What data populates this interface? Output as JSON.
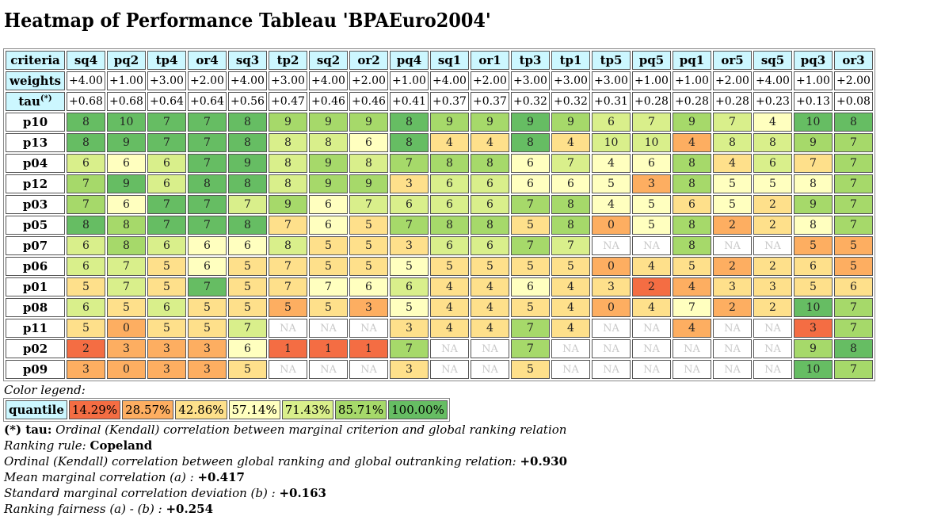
{
  "title": "Heatmap of Performance Tableau 'BPAEuro2004'",
  "header_labels": {
    "criteria": "criteria",
    "weights": "weights",
    "tau": "tau",
    "tau_sup": "(*)"
  },
  "colors": {
    "header_bg": "#ccf7ff",
    "na_text": "#c8c8c8",
    "quantile_classes": [
      "#ffffff",
      "#f46d43",
      "#fdae61",
      "#fee08b",
      "#ffffbf",
      "#d9ef8b",
      "#a6d96a",
      "#66bd63"
    ]
  },
  "criteria": [
    "sq4",
    "pq2",
    "tp4",
    "or4",
    "sq3",
    "tp2",
    "sq2",
    "or2",
    "pq4",
    "sq1",
    "or1",
    "tp3",
    "tp1",
    "tp5",
    "pq5",
    "pq1",
    "or5",
    "sq5",
    "pq3",
    "or3"
  ],
  "weights": [
    "+4.00",
    "+1.00",
    "+3.00",
    "+2.00",
    "+4.00",
    "+3.00",
    "+4.00",
    "+2.00",
    "+1.00",
    "+4.00",
    "+2.00",
    "+3.00",
    "+3.00",
    "+3.00",
    "+1.00",
    "+1.00",
    "+2.00",
    "+4.00",
    "+1.00",
    "+2.00"
  ],
  "tau": [
    "+0.68",
    "+0.68",
    "+0.64",
    "+0.64",
    "+0.56",
    "+0.47",
    "+0.46",
    "+0.46",
    "+0.41",
    "+0.37",
    "+0.37",
    "+0.32",
    "+0.32",
    "+0.31",
    "+0.28",
    "+0.28",
    "+0.28",
    "+0.23",
    "+0.13",
    "+0.08"
  ],
  "rows": [
    {
      "name": "p10",
      "values": [
        "8",
        "10",
        "7",
        "7",
        "8",
        "9",
        "9",
        "9",
        "8",
        "9",
        "9",
        "9",
        "9",
        "6",
        "7",
        "9",
        "7",
        "4",
        "10",
        "8"
      ],
      "classes": [
        7,
        7,
        7,
        7,
        7,
        6,
        6,
        6,
        7,
        6,
        6,
        7,
        6,
        5,
        5,
        6,
        5,
        4,
        7,
        7
      ]
    },
    {
      "name": "p13",
      "values": [
        "8",
        "9",
        "7",
        "7",
        "8",
        "8",
        "8",
        "6",
        "8",
        "4",
        "4",
        "8",
        "4",
        "10",
        "10",
        "4",
        "8",
        "8",
        "9",
        "7"
      ],
      "classes": [
        7,
        7,
        7,
        7,
        7,
        5,
        5,
        4,
        7,
        3,
        3,
        7,
        3,
        5,
        5,
        2,
        5,
        5,
        6,
        6
      ]
    },
    {
      "name": "p04",
      "values": [
        "6",
        "6",
        "6",
        "7",
        "9",
        "8",
        "9",
        "8",
        "7",
        "8",
        "8",
        "6",
        "7",
        "4",
        "6",
        "8",
        "4",
        "6",
        "7",
        "7"
      ],
      "classes": [
        5,
        4,
        5,
        7,
        7,
        5,
        6,
        5,
        6,
        6,
        6,
        4,
        5,
        4,
        4,
        6,
        3,
        5,
        3,
        6
      ]
    },
    {
      "name": "p12",
      "values": [
        "7",
        "9",
        "6",
        "8",
        "8",
        "8",
        "9",
        "9",
        "3",
        "6",
        "6",
        "6",
        "6",
        "5",
        "3",
        "8",
        "5",
        "5",
        "8",
        "7"
      ],
      "classes": [
        6,
        7,
        5,
        7,
        7,
        5,
        6,
        6,
        3,
        5,
        5,
        4,
        4,
        4,
        2,
        6,
        4,
        4,
        4,
        6
      ]
    },
    {
      "name": "p03",
      "values": [
        "7",
        "6",
        "7",
        "7",
        "7",
        "9",
        "6",
        "7",
        "6",
        "6",
        "6",
        "7",
        "8",
        "4",
        "5",
        "6",
        "5",
        "2",
        "9",
        "7"
      ],
      "classes": [
        6,
        4,
        7,
        7,
        5,
        6,
        4,
        5,
        5,
        5,
        5,
        6,
        6,
        4,
        4,
        3,
        4,
        3,
        6,
        6
      ]
    },
    {
      "name": "p05",
      "values": [
        "8",
        "8",
        "7",
        "7",
        "8",
        "7",
        "6",
        "5",
        "7",
        "8",
        "8",
        "5",
        "8",
        "0",
        "5",
        "8",
        "2",
        "2",
        "8",
        "7"
      ],
      "classes": [
        7,
        6,
        7,
        7,
        7,
        3,
        4,
        3,
        6,
        6,
        6,
        3,
        6,
        2,
        4,
        6,
        2,
        3,
        4,
        6
      ]
    },
    {
      "name": "p07",
      "values": [
        "6",
        "8",
        "6",
        "6",
        "6",
        "8",
        "5",
        "5",
        "3",
        "6",
        "6",
        "7",
        "7",
        "NA",
        "NA",
        "8",
        "NA",
        "NA",
        "5",
        "5"
      ],
      "classes": [
        5,
        6,
        5,
        4,
        4,
        5,
        3,
        3,
        3,
        5,
        5,
        6,
        5,
        0,
        0,
        6,
        0,
        0,
        2,
        2
      ]
    },
    {
      "name": "p06",
      "values": [
        "6",
        "7",
        "5",
        "6",
        "5",
        "7",
        "5",
        "5",
        "5",
        "5",
        "5",
        "5",
        "5",
        "0",
        "4",
        "5",
        "2",
        "2",
        "6",
        "5"
      ],
      "classes": [
        5,
        5,
        3,
        4,
        3,
        3,
        3,
        3,
        4,
        3,
        3,
        3,
        3,
        2,
        3,
        3,
        2,
        3,
        3,
        2
      ]
    },
    {
      "name": "p01",
      "values": [
        "5",
        "7",
        "5",
        "7",
        "5",
        "7",
        "7",
        "6",
        "6",
        "4",
        "4",
        "6",
        "4",
        "3",
        "2",
        "4",
        "3",
        "3",
        "5",
        "6"
      ],
      "classes": [
        3,
        5,
        3,
        7,
        3,
        3,
        4,
        4,
        5,
        3,
        3,
        4,
        3,
        3,
        1,
        2,
        3,
        3,
        3,
        3
      ]
    },
    {
      "name": "p08",
      "values": [
        "6",
        "5",
        "6",
        "5",
        "5",
        "5",
        "5",
        "3",
        "5",
        "4",
        "4",
        "5",
        "4",
        "0",
        "4",
        "7",
        "2",
        "2",
        "10",
        "7"
      ],
      "classes": [
        5,
        3,
        5,
        3,
        3,
        2,
        3,
        2,
        4,
        3,
        3,
        3,
        3,
        2,
        3,
        4,
        2,
        3,
        7,
        6
      ]
    },
    {
      "name": "p11",
      "values": [
        "5",
        "0",
        "5",
        "5",
        "7",
        "NA",
        "NA",
        "NA",
        "3",
        "4",
        "4",
        "7",
        "4",
        "NA",
        "NA",
        "4",
        "NA",
        "NA",
        "3",
        "7"
      ],
      "classes": [
        3,
        2,
        3,
        3,
        5,
        0,
        0,
        0,
        3,
        3,
        3,
        6,
        3,
        0,
        0,
        2,
        0,
        0,
        1,
        6
      ]
    },
    {
      "name": "p02",
      "values": [
        "2",
        "3",
        "3",
        "3",
        "6",
        "1",
        "1",
        "1",
        "7",
        "NA",
        "NA",
        "7",
        "NA",
        "NA",
        "NA",
        "NA",
        "NA",
        "NA",
        "9",
        "8"
      ],
      "classes": [
        1,
        2,
        2,
        2,
        4,
        1,
        1,
        1,
        6,
        0,
        0,
        6,
        0,
        0,
        0,
        0,
        0,
        0,
        6,
        7
      ]
    },
    {
      "name": "p09",
      "values": [
        "3",
        "0",
        "3",
        "3",
        "5",
        "NA",
        "NA",
        "NA",
        "3",
        "NA",
        "NA",
        "5",
        "NA",
        "NA",
        "NA",
        "NA",
        "NA",
        "NA",
        "10",
        "7"
      ],
      "classes": [
        2,
        2,
        2,
        2,
        3,
        0,
        0,
        0,
        3,
        0,
        0,
        3,
        0,
        0,
        0,
        0,
        0,
        0,
        7,
        6
      ]
    }
  ],
  "legend": {
    "title": "Color legend:",
    "label": "quantile",
    "items": [
      {
        "text": "14.29%",
        "class": 1
      },
      {
        "text": "28.57%",
        "class": 2
      },
      {
        "text": "42.86%",
        "class": 3
      },
      {
        "text": "57.14%",
        "class": 4
      },
      {
        "text": "71.43%",
        "class": 5
      },
      {
        "text": "85.71%",
        "class": 6
      },
      {
        "text": "100.00%",
        "class": 7
      }
    ]
  },
  "notes": {
    "tau_key": "(*) tau:",
    "tau_text": " Ordinal (Kendall) correlation between marginal criterion and global ranking relation",
    "ranking_rule_label": "Ranking rule: ",
    "ranking_rule_value": "Copeland",
    "global_corr_label": "Ordinal (Kendall) correlation between global ranking and global outranking relation: ",
    "global_corr_value": "+0.930",
    "mean_corr_label": "Mean marginal correlation (a) : ",
    "mean_corr_value": "+0.417",
    "std_corr_label": "Standard marginal correlation deviation (b) : ",
    "std_corr_value": "+0.163",
    "fairness_label": "Ranking fairness (a) - (b) : ",
    "fairness_value": "+0.254"
  }
}
